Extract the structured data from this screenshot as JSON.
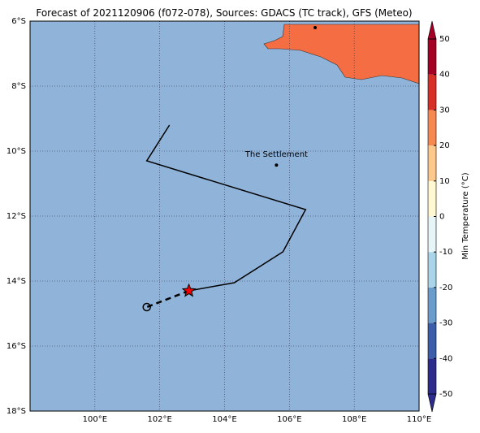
{
  "title": "Forecast of 2021120906 (f072-078), Sources: GDACS (TC track), GFS (Meteo)",
  "map": {
    "xlim": [
      98,
      110
    ],
    "ylim": [
      -18,
      -6
    ],
    "xticks": [
      {
        "value": 100,
        "label": "100°E"
      },
      {
        "value": 102,
        "label": "102°E"
      },
      {
        "value": 104,
        "label": "104°E"
      },
      {
        "value": 106,
        "label": "106°E"
      },
      {
        "value": 108,
        "label": "108°E"
      },
      {
        "value": 110,
        "label": "110°E"
      }
    ],
    "yticks": [
      {
        "value": -6,
        "label": "6°S"
      },
      {
        "value": -8,
        "label": "8°S"
      },
      {
        "value": -10,
        "label": "10°S"
      },
      {
        "value": -12,
        "label": "12°S"
      },
      {
        "value": -14,
        "label": "14°S"
      },
      {
        "value": -16,
        "label": "16°S"
      },
      {
        "value": -18,
        "label": "18°S"
      }
    ],
    "grid": true,
    "ocean_color": "#8fb3d9",
    "land_color": "#f46d43"
  },
  "track": {
    "lon": [
      102.3,
      101.6,
      106.5,
      105.8,
      104.3,
      102.9
    ],
    "lat": [
      -9.2,
      -10.3,
      -11.8,
      -13.1,
      -14.05,
      -14.3
    ],
    "color": "#000000"
  },
  "forecast": {
    "lon": [
      102.9,
      101.6
    ],
    "lat": [
      -14.3,
      -14.8
    ]
  },
  "places": [
    {
      "label": "The Settlement",
      "lon": 105.6,
      "lat": -10.43
    }
  ],
  "colorbar": {
    "label": "Min Temperature (°C)",
    "ticks": [
      -50,
      -40,
      -30,
      -20,
      -10,
      0,
      10,
      20,
      30,
      40,
      50
    ],
    "colors": [
      "#2c2c8c",
      "#3a5fa8",
      "#6a9dcb",
      "#aad4e8",
      "#e6f5f8",
      "#fff8d0",
      "#fdc98a",
      "#f6894f",
      "#d73027",
      "#a50026"
    ]
  }
}
